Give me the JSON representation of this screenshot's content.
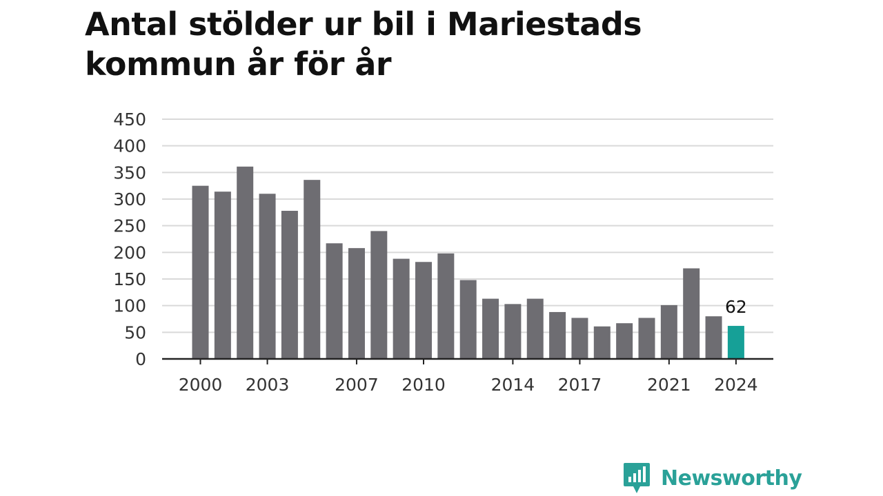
{
  "title": "Antal stölder ur bil i Mariestads kommun år för år",
  "brand": {
    "name": "Newsworthy",
    "icon": "newsworthy-logo-icon"
  },
  "colors": {
    "bar": "#6e6d72",
    "highlight": "#16a097",
    "grid": "#d9d9d9",
    "axis": "#222222"
  },
  "chart_data": {
    "type": "bar",
    "categories": [
      "2000",
      "2001",
      "2002",
      "2003",
      "2004",
      "2005",
      "2006",
      "2007",
      "2008",
      "2009",
      "2010",
      "2011",
      "2012",
      "2013",
      "2014",
      "2015",
      "2016",
      "2017",
      "2018",
      "2019",
      "2020",
      "2021",
      "2022",
      "2023",
      "2024"
    ],
    "values": [
      325,
      314,
      361,
      310,
      278,
      336,
      217,
      208,
      240,
      188,
      182,
      198,
      148,
      113,
      103,
      113,
      88,
      77,
      61,
      67,
      77,
      101,
      170,
      80,
      62
    ],
    "xtick_labels": [
      "2000",
      "2003",
      "2007",
      "2010",
      "2014",
      "2017",
      "2021",
      "2024"
    ],
    "yticks": [
      0,
      50,
      100,
      150,
      200,
      250,
      300,
      350,
      400,
      450
    ],
    "ylim": [
      0,
      450
    ],
    "highlight_index": 24,
    "data_labels": [
      {
        "category": "2024",
        "text": "62"
      }
    ],
    "grid": true,
    "legend": "none"
  }
}
